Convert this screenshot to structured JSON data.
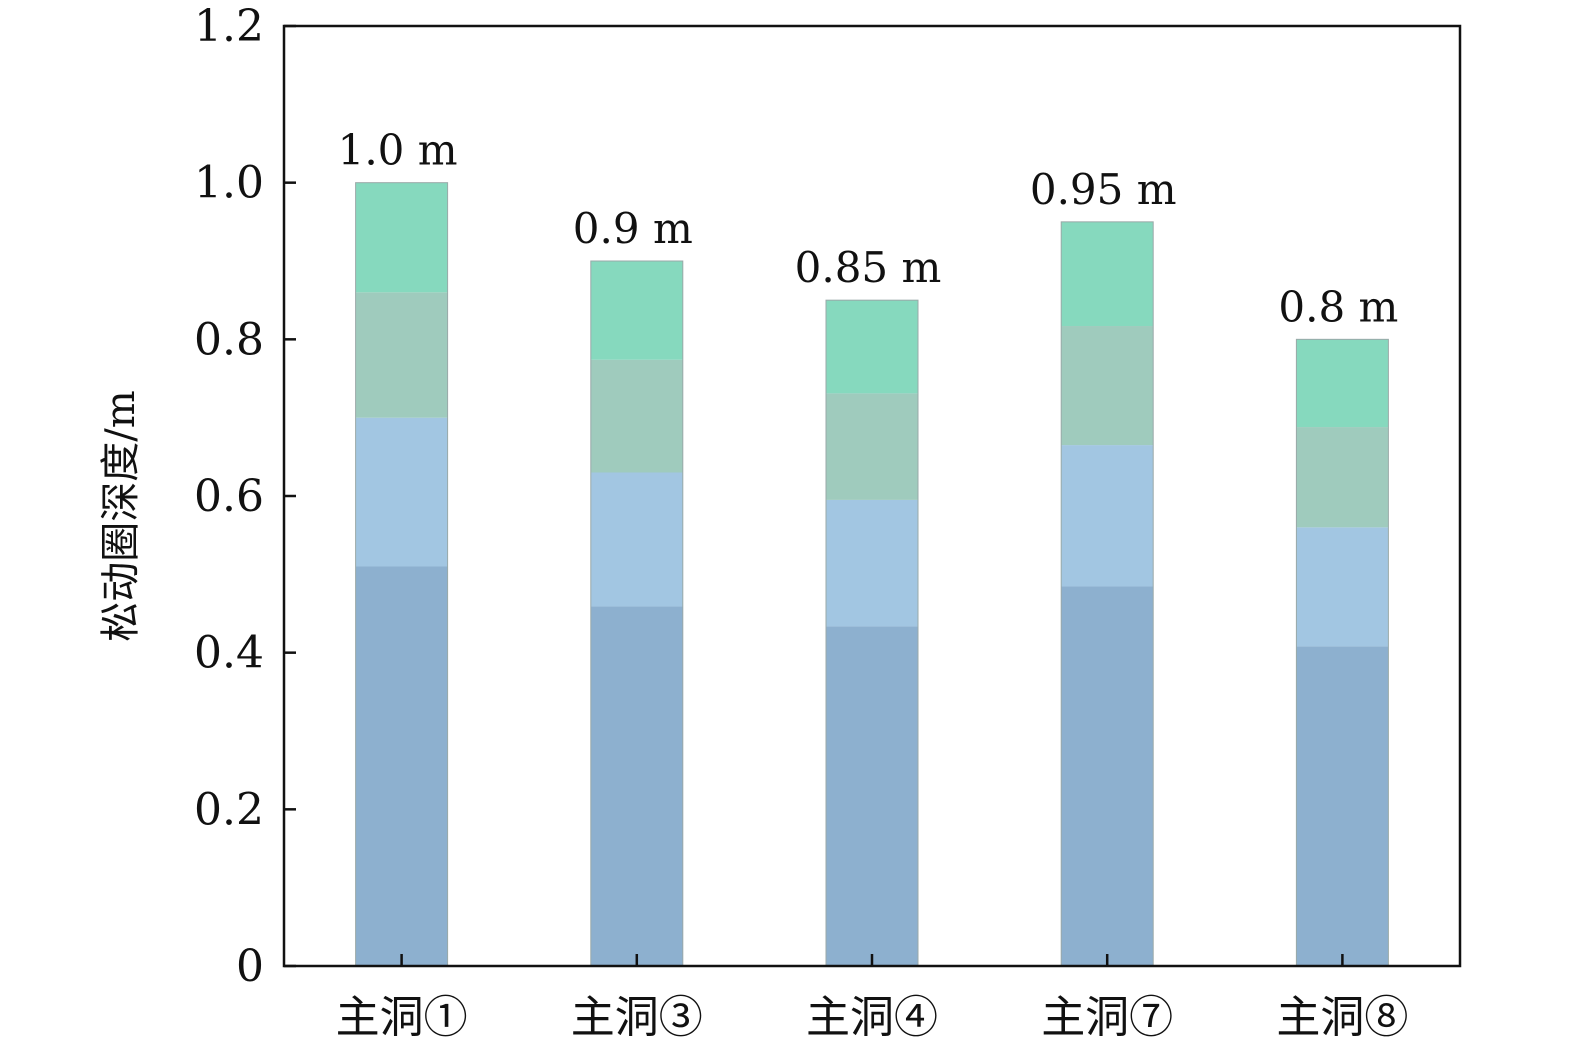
{
  "chart_data": {
    "type": "bar",
    "title": "",
    "xlabel": "",
    "ylabel": "松动圈深度/m",
    "categories": [
      "主洞①",
      "主洞③",
      "主洞④",
      "主洞⑦",
      "主洞⑧"
    ],
    "values": [
      1.0,
      0.9,
      0.85,
      0.95,
      0.8
    ],
    "data_labels": [
      "1.0 m",
      "0.9 m",
      "0.85 m",
      "0.95 m",
      "0.8 m"
    ],
    "ylim": [
      0,
      1.2
    ],
    "yticks": [
      0,
      0.2,
      0.4,
      0.6,
      0.8,
      1.0,
      1.2
    ],
    "ytick_labels": [
      "0",
      "0.2",
      "0.4",
      "0.6",
      "0.8",
      "1.0",
      "1.2"
    ],
    "grid": false,
    "legend": "none",
    "colors": {
      "bar_bottom": "#8db0cf",
      "bar_lower_mid": "#a2c6e2",
      "bar_upper_mid": "#9fcbbd",
      "bar_top": "#86d9be",
      "axis": "#111111"
    }
  }
}
